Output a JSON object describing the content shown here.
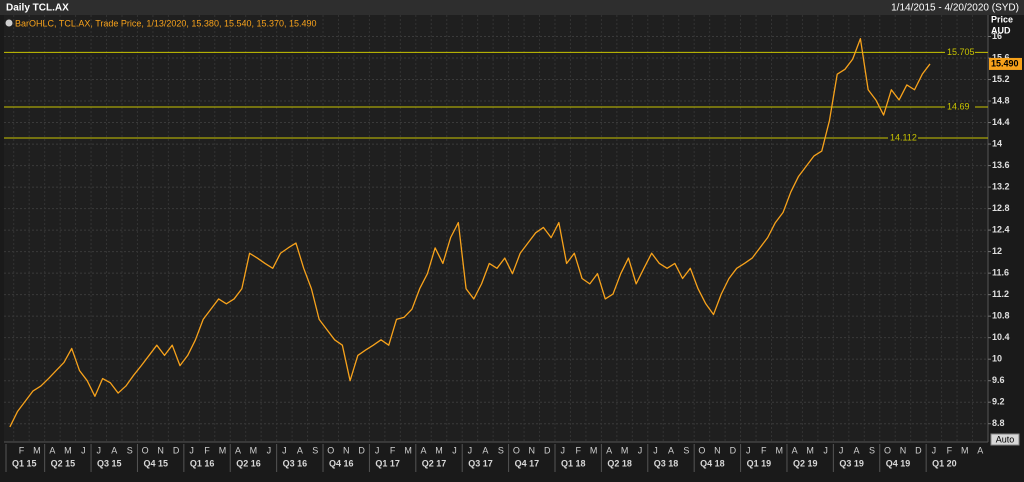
{
  "chart_data": {
    "type": "line",
    "title": "Daily TCL.AX",
    "date_range": "1/14/2015 - 4/20/2020 (SYD)",
    "ylabel": [
      "Price",
      "AUD"
    ],
    "auto_button": "Auto",
    "categories": [
      null,
      "F",
      null,
      "M",
      null,
      "A",
      null,
      "M",
      null,
      "J",
      null,
      "J",
      null,
      "A",
      null,
      "S",
      null,
      "O",
      null,
      "N",
      null,
      "D",
      null,
      "J",
      null,
      "F",
      null,
      "M",
      null,
      "A",
      null,
      "M",
      null,
      "J",
      null,
      "J",
      null,
      "A",
      null,
      "S",
      null,
      "O",
      null,
      "N",
      null,
      "D",
      null,
      "J",
      null,
      "F",
      null,
      "M",
      null,
      "A",
      null,
      "M",
      null,
      "J",
      null,
      "J",
      null,
      "A",
      null,
      "S",
      null,
      "O",
      null,
      "N",
      null,
      "D",
      null,
      "J",
      null,
      "F",
      null,
      "M",
      null,
      "A",
      null,
      "M",
      null,
      "J",
      null,
      "J",
      null,
      "A",
      null,
      "S",
      null,
      "O",
      null,
      "N",
      null,
      "D",
      null,
      "J",
      null,
      "F",
      null,
      "M",
      null,
      "A",
      null,
      "M",
      null,
      "J",
      null,
      "J",
      null,
      "A",
      null,
      "S",
      null,
      "O",
      null,
      "N",
      null,
      "D",
      null,
      "J",
      null,
      "F",
      null,
      "M",
      null,
      "A",
      null
    ],
    "quarters": [
      "Q1 15",
      "Q2 15",
      "Q3 15",
      "Q4 15",
      "Q1 16",
      "Q2 16",
      "Q3 16",
      "Q4 16",
      "Q1 17",
      "Q2 17",
      "Q3 17",
      "Q4 17",
      "Q1 18",
      "Q2 18",
      "Q3 18",
      "Q4 18",
      "Q1 19",
      "Q2 19",
      "Q3 19",
      "Q4 19",
      "Q1 20"
    ],
    "series": [
      {
        "name": "BarOHLC, TCL.AX, Trade Price, 1/13/2020, 15.380, 15.540, 15.370, 15.490",
        "color": "#f7a21b",
        "values": [
          8.74,
          9.03,
          9.22,
          9.41,
          9.5,
          9.64,
          9.79,
          9.94,
          10.2,
          9.79,
          9.6,
          9.31,
          9.64,
          9.56,
          9.37,
          9.5,
          9.7,
          9.88,
          10.07,
          10.26,
          10.07,
          10.26,
          9.88,
          10.07,
          10.36,
          10.74,
          10.93,
          11.12,
          11.03,
          11.12,
          11.31,
          11.97,
          11.88,
          11.78,
          11.69,
          11.97,
          12.07,
          12.16,
          11.69,
          11.31,
          10.74,
          10.55,
          10.36,
          10.26,
          9.6,
          10.07,
          10.17,
          10.26,
          10.36,
          10.26,
          10.74,
          10.78,
          10.93,
          11.31,
          11.59,
          12.07,
          11.78,
          12.26,
          12.54,
          11.31,
          11.12,
          11.4,
          11.78,
          11.69,
          11.88,
          11.59,
          11.97,
          12.16,
          12.35,
          12.45,
          12.26,
          12.54,
          11.78,
          11.97,
          11.5,
          11.4,
          11.59,
          11.12,
          11.21,
          11.59,
          11.88,
          11.4,
          11.69,
          11.97,
          11.78,
          11.69,
          11.78,
          11.5,
          11.69,
          11.31,
          11.03,
          10.83,
          11.21,
          11.5,
          11.69,
          11.78,
          11.88,
          12.07,
          12.26,
          12.54,
          12.73,
          13.11,
          13.4,
          13.59,
          13.78,
          13.87,
          14.44,
          15.3,
          15.39,
          15.58,
          15.96,
          15.01,
          14.82,
          14.54,
          15.01,
          14.82,
          15.1,
          15.01,
          15.3,
          15.49,
          null,
          null,
          null,
          null,
          null,
          null,
          null
        ]
      }
    ],
    "levels": [
      15.705,
      14.69,
      14.112
    ],
    "level_color": "#c9c400",
    "last_price": {
      "value": 15.49,
      "label": "15.490"
    },
    "ylim": [
      8.46,
      16.4
    ],
    "yticks": [
      8.8,
      9.2,
      9.6,
      10,
      10.4,
      10.8,
      11.2,
      11.6,
      12,
      12.4,
      12.8,
      13.2,
      13.6,
      14,
      14.4,
      14.8,
      15.2,
      15.6,
      16
    ],
    "grid": true
  }
}
